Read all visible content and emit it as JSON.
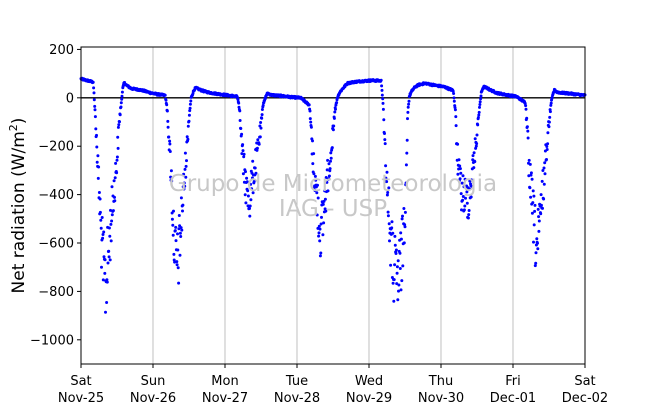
{
  "chart_data": {
    "type": "scatter",
    "title": "",
    "ylabel": "Net radiation (W/m²)",
    "ylabel_parts": {
      "main": "Net radiation (W/m",
      "sup": "2",
      "close": ")"
    },
    "xlabel": "",
    "watermark_lines": [
      "Grupo de Micrometeorologia",
      "IAG - USP"
    ],
    "ylim": [
      -1100,
      210
    ],
    "yticks": [
      200,
      0,
      -200,
      -400,
      -600,
      -800,
      -1000
    ],
    "ytick_labels": [
      "200",
      "0",
      "−200",
      "−400",
      "−600",
      "−800",
      "−1000"
    ],
    "xlim_days": [
      0,
      7
    ],
    "xticks": [
      {
        "day": "Sat",
        "date": "Nov-25"
      },
      {
        "day": "Sun",
        "date": "Nov-26"
      },
      {
        "day": "Mon",
        "date": "Nov-27"
      },
      {
        "day": "Tue",
        "date": "Nov-28"
      },
      {
        "day": "Wed",
        "date": "Nov-29"
      },
      {
        "day": "Thu",
        "date": "Nov-30"
      },
      {
        "day": "Fri",
        "date": "Dec-01"
      },
      {
        "day": "Sat",
        "date": "Dec-02"
      }
    ],
    "grid": "vertical",
    "zero_line": true,
    "marker_color": "#0000ff",
    "series": [
      {
        "profile": {
          "x": [
            0,
            0.08,
            0.17,
            0.2,
            0.22,
            0.25,
            0.28,
            0.31,
            0.34,
            0.38,
            0.42,
            0.46,
            0.5,
            0.53,
            0.56,
            0.58,
            0.6,
            0.64,
            0.7,
            0.78,
            0.86,
            0.95,
            1.05,
            1.17,
            1.2,
            1.22,
            1.25,
            1.28,
            1.31,
            1.34,
            1.38,
            1.42,
            1.46,
            1.5,
            1.53,
            1.56,
            1.58,
            1.6,
            1.64,
            1.7,
            1.78,
            1.86,
            1.95,
            2.05,
            2.17,
            2.2,
            2.22,
            2.25,
            2.28,
            2.31,
            2.34,
            2.38,
            2.42,
            2.46,
            2.5,
            2.53,
            2.56,
            2.58,
            2.6,
            2.64,
            2.7,
            2.78,
            2.86,
            2.95,
            3.05,
            3.17,
            3.2,
            3.22,
            3.25,
            3.28,
            3.31,
            3.34,
            3.38,
            3.42,
            3.46,
            3.5,
            3.53,
            3.56,
            3.58,
            3.6,
            3.64,
            3.7,
            3.78,
            3.86,
            3.95,
            4.05,
            4.17,
            4.2,
            4.22,
            4.25,
            4.28,
            4.31,
            4.34,
            4.38,
            4.42,
            4.46,
            4.5,
            4.52,
            4.54,
            4.56,
            4.58,
            4.6,
            4.64,
            4.7,
            4.78,
            4.86,
            4.95,
            5.05,
            5.17,
            5.2,
            5.22,
            5.25,
            5.28,
            5.31,
            5.34,
            5.38,
            5.42,
            5.46,
            5.5,
            5.53,
            5.56,
            5.58,
            5.6,
            5.64,
            5.7,
            5.78,
            5.86,
            5.95,
            6.05,
            6.17,
            6.2,
            6.22,
            6.25,
            6.28,
            6.31,
            6.34,
            6.38,
            6.42,
            6.46,
            6.5,
            6.53,
            6.56,
            6.58,
            6.6,
            6.64,
            6.7,
            6.78,
            6.86,
            6.95,
            7.0
          ],
          "y": [
            78,
            72,
            65,
            -80,
            -200,
            -380,
            -560,
            -700,
            -780,
            -650,
            -500,
            -380,
            -250,
            -100,
            -20,
            40,
            62,
            50,
            38,
            35,
            30,
            22,
            15,
            10,
            -60,
            -160,
            -300,
            -520,
            -650,
            -700,
            -560,
            -400,
            -250,
            -80,
            0,
            25,
            38,
            40,
            35,
            28,
            22,
            18,
            14,
            10,
            5,
            -40,
            -140,
            -260,
            -340,
            -400,
            -420,
            -340,
            -280,
            -200,
            -120,
            -30,
            0,
            15,
            18,
            12,
            10,
            8,
            5,
            2,
            0,
            -30,
            -140,
            -250,
            -340,
            -420,
            -520,
            -560,
            -440,
            -340,
            -250,
            -150,
            -50,
            0,
            15,
            25,
            40,
            60,
            65,
            68,
            70,
            72,
            70,
            -40,
            -200,
            -350,
            -500,
            -620,
            -700,
            -760,
            -740,
            -640,
            -440,
            -250,
            -60,
            5,
            20,
            30,
            45,
            55,
            60,
            55,
            50,
            45,
            30,
            -60,
            -200,
            -330,
            -380,
            -400,
            -420,
            -410,
            -350,
            -250,
            -150,
            -50,
            20,
            40,
            45,
            40,
            30,
            20,
            15,
            10,
            5,
            -20,
            -140,
            -280,
            -380,
            -480,
            -580,
            -620,
            -500,
            -360,
            -230,
            -100,
            -20,
            20,
            35,
            25,
            22,
            20,
            18,
            15,
            12,
            10
          ]
        },
        "scatter_spread": 0.45
      }
    ]
  }
}
